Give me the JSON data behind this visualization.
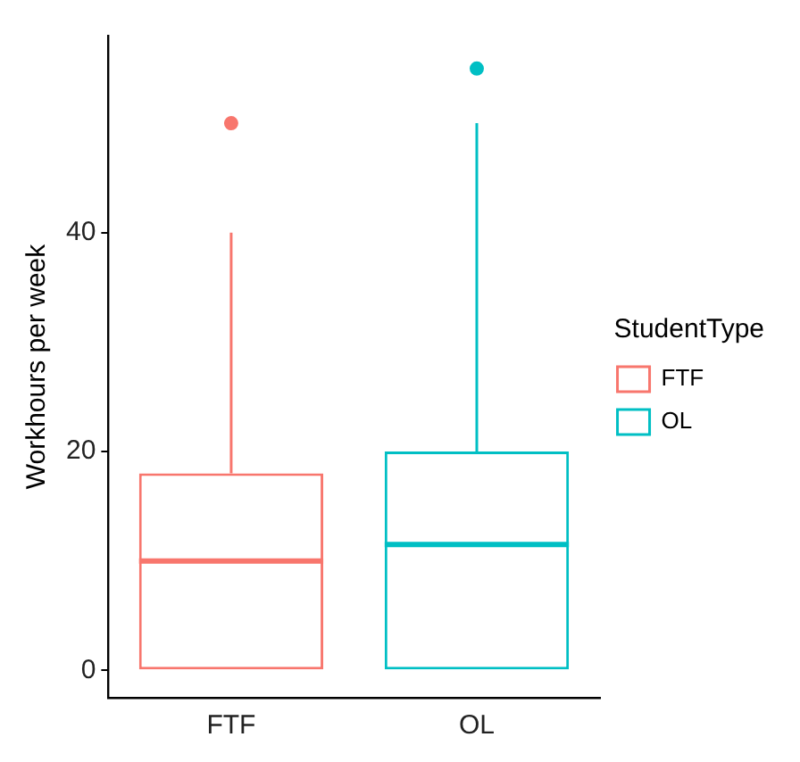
{
  "chart_data": {
    "type": "box",
    "ylabel": "Workhours per week",
    "legend_title": "StudentType",
    "legend": "right",
    "grid": false,
    "categories": [
      "FTF",
      "OL"
    ],
    "ylim": [
      -2.5,
      58
    ],
    "yticks": [
      0,
      20,
      40
    ],
    "series": [
      {
        "name": "FTF",
        "color": "#f8766d",
        "boxes": [
          {
            "low": 0,
            "q1": 0,
            "median": 10,
            "q3": 18,
            "high": 40,
            "outliers": [
              50
            ]
          },
          null
        ]
      },
      {
        "name": "OL",
        "color": "#00bfc4",
        "boxes": [
          null,
          {
            "low": 0,
            "q1": 0,
            "median": 11.5,
            "q3": 20,
            "high": 50,
            "outliers": [
              55
            ]
          }
        ]
      }
    ]
  }
}
